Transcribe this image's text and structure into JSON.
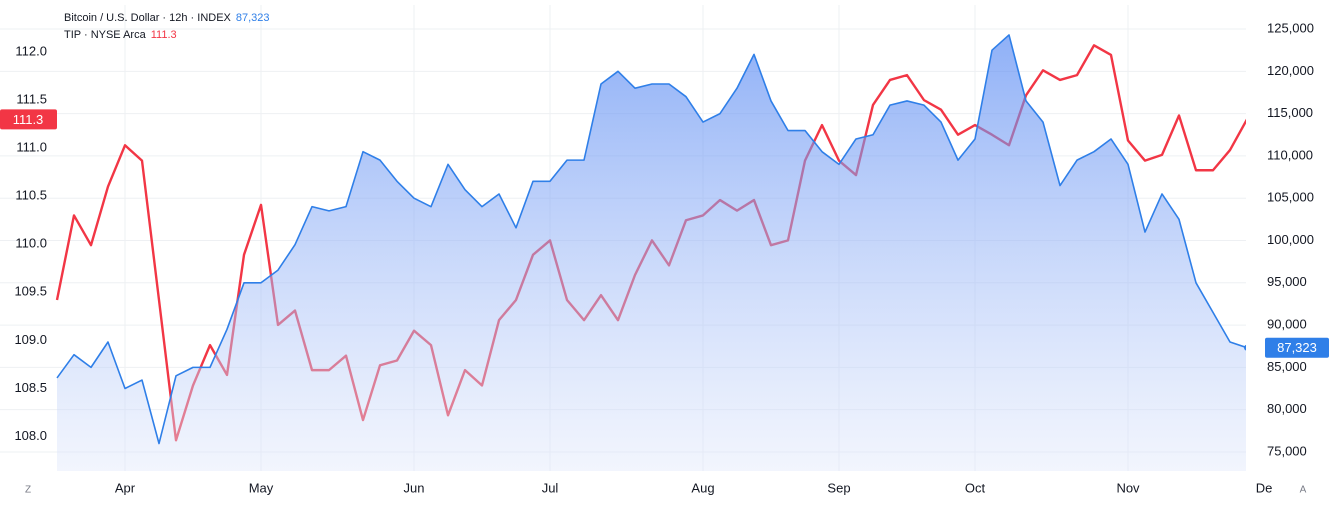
{
  "chart_data": {
    "type": "line",
    "categories": [
      null,
      null,
      null,
      null,
      "Apr",
      null,
      null,
      null,
      null,
      null,
      null,
      null,
      "May",
      null,
      null,
      null,
      null,
      null,
      null,
      null,
      null,
      "Jun",
      null,
      null,
      null,
      null,
      null,
      null,
      null,
      "Jul",
      null,
      null,
      null,
      null,
      null,
      null,
      null,
      null,
      "Aug",
      null,
      null,
      null,
      null,
      null,
      null,
      null,
      "Sep",
      null,
      null,
      null,
      null,
      null,
      null,
      null,
      "Oct",
      null,
      null,
      null,
      null,
      null,
      null,
      null,
      null,
      "Nov",
      null,
      null,
      null,
      null,
      null,
      null,
      null,
      "De"
    ],
    "series": [
      {
        "name": "Bitcoin / U.S. Dollar · 12h · INDEX",
        "color": "#2f7fe8",
        "axis": "y2",
        "style": "area",
        "last_label": "87,323",
        "values": [
          83750,
          86500,
          85000,
          88000,
          82500,
          83500,
          76000,
          84000,
          85000,
          85000,
          89500,
          95000,
          95000,
          96500,
          99500,
          104000,
          103500,
          104000,
          110500,
          109500,
          107000,
          105000,
          104000,
          109000,
          106000,
          104000,
          105500,
          101500,
          107000,
          107000,
          109500,
          109500,
          118500,
          120000,
          118000,
          118500,
          118500,
          117000,
          114000,
          115000,
          118000,
          122000,
          116500,
          113000,
          113000,
          110500,
          109000,
          112000,
          112500,
          116000,
          116500,
          116000,
          114000,
          109500,
          112000,
          122500,
          124300,
          116500,
          114000,
          106500,
          109500,
          110500,
          112000,
          109000,
          101000,
          105500,
          102500,
          95000,
          91500,
          88000,
          87323,
          null
        ]
      },
      {
        "name": "TIP · NYSE Arca",
        "color": "#f23645",
        "axis": "y",
        "style": "line",
        "values": [
          109.42,
          110.3,
          109.99,
          110.6,
          111.03,
          110.87,
          109.42,
          107.96,
          108.53,
          108.95,
          108.64,
          109.89,
          110.41,
          109.16,
          109.31,
          108.69,
          108.69,
          108.84,
          108.17,
          108.74,
          108.79,
          109.1,
          108.95,
          108.22,
          108.69,
          108.53,
          109.21,
          109.42,
          109.89,
          110.04,
          109.42,
          109.21,
          109.47,
          109.21,
          109.68,
          110.04,
          109.78,
          110.25,
          110.3,
          110.46,
          110.35,
          110.46,
          109.99,
          110.04,
          110.87,
          111.24,
          110.87,
          110.72,
          111.45,
          111.71,
          111.76,
          111.5,
          111.4,
          111.14,
          111.24,
          111.14,
          111.03,
          111.55,
          111.81,
          111.71,
          111.76,
          112.07,
          111.97,
          111.08,
          110.87,
          110.93,
          111.34,
          110.77,
          110.77,
          110.98,
          111.3,
          null
        ]
      }
    ],
    "ylim": [
      107.64,
      112.49
    ],
    "yticks": [
      {
        "value": 108,
        "label": "108.0"
      },
      108.5,
      {
        "value": 109,
        "label": "109.0"
      },
      109.5,
      {
        "value": 110,
        "label": "110.0"
      },
      110.5,
      {
        "value": 111,
        "label": "111.0"
      },
      111.5,
      {
        "value": 112,
        "label": "112.0"
      }
    ],
    "y2lim": [
      72750,
      127840
    ],
    "y2ticks": [
      {
        "value": 75000,
        "label": "75,000"
      },
      {
        "value": 80000,
        "label": "80,000"
      },
      {
        "value": 85000,
        "label": "85,000"
      },
      {
        "value": 90000,
        "label": "90,000"
      },
      {
        "value": 95000,
        "label": "95,000"
      },
      {
        "value": 100000,
        "label": "100,000"
      },
      {
        "value": 105000,
        "label": "105,000"
      },
      {
        "value": 110000,
        "label": "110,000"
      },
      {
        "value": 115000,
        "label": "115,000"
      },
      {
        "value": 120000,
        "label": "120,000"
      },
      {
        "value": 125000,
        "label": "125,000"
      }
    ],
    "grid": true,
    "axis_buttons": [
      "Z",
      "A"
    ]
  }
}
